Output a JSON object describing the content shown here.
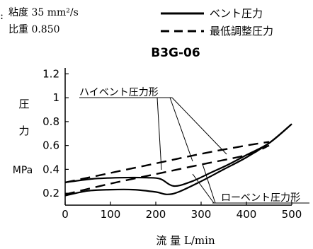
{
  "header": {
    "prefix": ":",
    "viscosity": "粘度 35 mm²/s",
    "specific_gravity": "比重 0.850"
  },
  "chart_data": {
    "type": "line",
    "title": "B3G-06",
    "xlabel": "流 量 L/min",
    "ylabel_chars": [
      "圧",
      "力"
    ],
    "yunit": "MPa",
    "xlim": [
      0,
      500
    ],
    "ylim": [
      0.1,
      1.25
    ],
    "xticks": [
      0,
      100,
      200,
      300,
      400,
      500
    ],
    "yticks": [
      0.2,
      0.4,
      0.6,
      0.8,
      1,
      1.2
    ],
    "ytick_labels": [
      "0.2",
      "0.4",
      "0.6",
      "0.8",
      "1",
      "1.2"
    ],
    "grid": false,
    "legend": {
      "position": "top-right",
      "entries": [
        {
          "label": "ベント圧力",
          "style": "solid"
        },
        {
          "label": "最低調整圧力",
          "style": "dashed"
        }
      ]
    },
    "series": [
      {
        "group": "high",
        "style": "solid",
        "x": [
          0,
          60,
          120,
          180,
          210,
          240,
          280,
          320,
          360,
          400,
          450,
          500
        ],
        "y": [
          0.29,
          0.32,
          0.33,
          0.33,
          0.32,
          0.26,
          0.3,
          0.37,
          0.44,
          0.52,
          0.62,
          0.78
        ]
      },
      {
        "group": "high",
        "style": "dashed",
        "x": [
          0,
          100,
          200,
          300,
          400,
          450
        ],
        "y": [
          0.29,
          0.37,
          0.45,
          0.53,
          0.6,
          0.63
        ]
      },
      {
        "group": "low",
        "style": "solid",
        "x": [
          0,
          50,
          100,
          150,
          200,
          225,
          250,
          300,
          350,
          400,
          450,
          500
        ],
        "y": [
          0.18,
          0.22,
          0.23,
          0.23,
          0.21,
          0.19,
          0.21,
          0.3,
          0.4,
          0.5,
          0.62,
          0.78
        ]
      },
      {
        "group": "low",
        "style": "dashed",
        "x": [
          0,
          100,
          200,
          300,
          400,
          450
        ],
        "y": [
          0.19,
          0.28,
          0.36,
          0.44,
          0.52,
          0.6
        ]
      }
    ],
    "annotations": [
      {
        "text": "ハイベント圧力形",
        "group": "high"
      },
      {
        "text": "ローベント圧力形",
        "group": "low"
      }
    ]
  }
}
